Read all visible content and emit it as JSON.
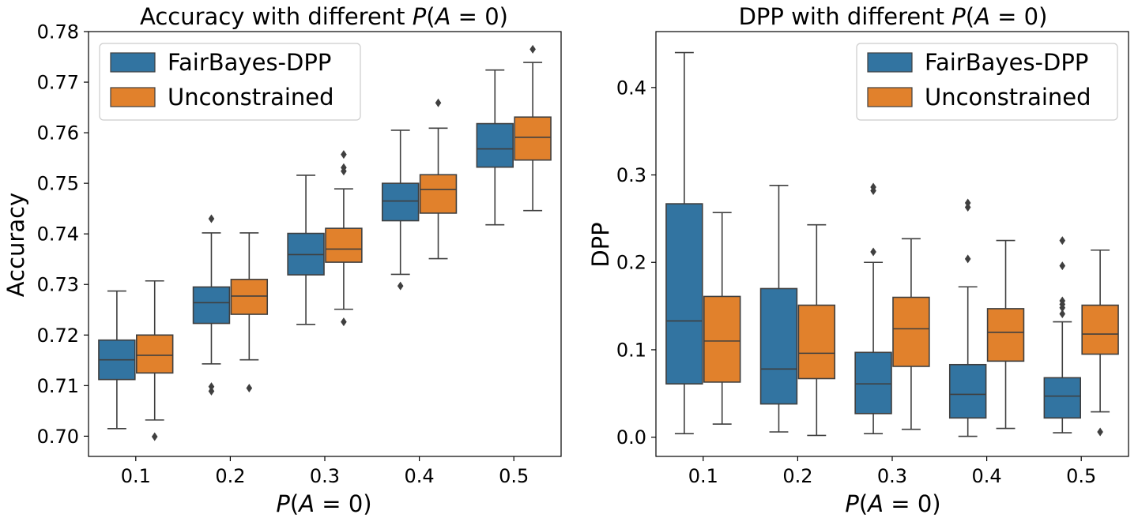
{
  "chart_data": [
    {
      "type": "box",
      "title_prefix": "Accuracy with different ",
      "xlabel": "P(A = 0)",
      "ylabel": "Accuracy",
      "categories": [
        "0.1",
        "0.2",
        "0.3",
        "0.4",
        "0.5"
      ],
      "ylim": [
        0.696,
        0.78
      ],
      "yticks": [
        "0.70",
        "0.71",
        "0.72",
        "0.73",
        "0.74",
        "0.75",
        "0.76",
        "0.77",
        "0.78"
      ],
      "legend_position": "top-left",
      "series": [
        {
          "name": "FairBayes-DPP",
          "color": "#3274a1",
          "boxes": [
            {
              "whislo": 0.7015,
              "q1": 0.7112,
              "med": 0.7151,
              "q3": 0.719,
              "whishi": 0.7287,
              "fliers": []
            },
            {
              "whislo": 0.7143,
              "q1": 0.7223,
              "med": 0.7264,
              "q3": 0.7295,
              "whishi": 0.7402,
              "fliers": [
                0.743,
                0.7098,
                0.7089
              ]
            },
            {
              "whislo": 0.7221,
              "q1": 0.7319,
              "med": 0.7359,
              "q3": 0.7401,
              "whishi": 0.7516,
              "fliers": []
            },
            {
              "whislo": 0.732,
              "q1": 0.7426,
              "med": 0.7465,
              "q3": 0.75,
              "whishi": 0.7605,
              "fliers": [
                0.7297
              ]
            },
            {
              "whislo": 0.7418,
              "q1": 0.7532,
              "med": 0.7568,
              "q3": 0.7618,
              "whishi": 0.7724,
              "fliers": []
            }
          ]
        },
        {
          "name": "Unconstrained",
          "color": "#e1812c",
          "boxes": [
            {
              "whislo": 0.7032,
              "q1": 0.7125,
              "med": 0.716,
              "q3": 0.72,
              "whishi": 0.7307,
              "fliers": [
                0.6999
              ]
            },
            {
              "whislo": 0.7151,
              "q1": 0.7241,
              "med": 0.7277,
              "q3": 0.731,
              "whishi": 0.7402,
              "fliers": [
                0.7095
              ]
            },
            {
              "whislo": 0.7251,
              "q1": 0.7344,
              "med": 0.737,
              "q3": 0.7411,
              "whishi": 0.7489,
              "fliers": [
                0.7557,
                0.7531,
                0.7524,
                0.7226
              ]
            },
            {
              "whislo": 0.7351,
              "q1": 0.7441,
              "med": 0.7488,
              "q3": 0.7517,
              "whishi": 0.7609,
              "fliers": [
                0.7659
              ]
            },
            {
              "whislo": 0.7446,
              "q1": 0.7546,
              "med": 0.7591,
              "q3": 0.7631,
              "whishi": 0.7739,
              "fliers": [
                0.7765
              ]
            }
          ]
        }
      ]
    },
    {
      "type": "box",
      "title_prefix": "DPP with different ",
      "xlabel": "P(A = 0)",
      "ylabel": "DPP",
      "categories": [
        "0.1",
        "0.2",
        "0.3",
        "0.4",
        "0.5"
      ],
      "ylim": [
        -0.022,
        0.464
      ],
      "yticks": [
        "0.0",
        "0.1",
        "0.2",
        "0.3",
        "0.4"
      ],
      "legend_position": "top-right",
      "series": [
        {
          "name": "FairBayes-DPP",
          "color": "#3274a1",
          "boxes": [
            {
              "whislo": 0.004,
              "q1": 0.061,
              "med": 0.133,
              "q3": 0.267,
              "whishi": 0.44,
              "fliers": []
            },
            {
              "whislo": 0.006,
              "q1": 0.038,
              "med": 0.078,
              "q3": 0.17,
              "whishi": 0.288,
              "fliers": []
            },
            {
              "whislo": 0.004,
              "q1": 0.027,
              "med": 0.061,
              "q3": 0.097,
              "whishi": 0.2,
              "fliers": [
                0.286,
                0.282,
                0.212
              ]
            },
            {
              "whislo": 0.001,
              "q1": 0.022,
              "med": 0.049,
              "q3": 0.083,
              "whishi": 0.172,
              "fliers": [
                0.268,
                0.263,
                0.204
              ]
            },
            {
              "whislo": 0.005,
              "q1": 0.022,
              "med": 0.047,
              "q3": 0.068,
              "whishi": 0.132,
              "fliers": [
                0.225,
                0.196,
                0.156,
                0.152,
                0.148,
                0.141
              ]
            }
          ]
        },
        {
          "name": "Unconstrained",
          "color": "#e1812c",
          "boxes": [
            {
              "whislo": 0.015,
              "q1": 0.063,
              "med": 0.11,
              "q3": 0.161,
              "whishi": 0.257,
              "fliers": []
            },
            {
              "whislo": 0.002,
              "q1": 0.067,
              "med": 0.096,
              "q3": 0.151,
              "whishi": 0.243,
              "fliers": []
            },
            {
              "whislo": 0.009,
              "q1": 0.081,
              "med": 0.124,
              "q3": 0.16,
              "whishi": 0.227,
              "fliers": []
            },
            {
              "whislo": 0.01,
              "q1": 0.087,
              "med": 0.12,
              "q3": 0.147,
              "whishi": 0.225,
              "fliers": []
            },
            {
              "whislo": 0.029,
              "q1": 0.095,
              "med": 0.118,
              "q3": 0.151,
              "whishi": 0.214,
              "fliers": [
                0.006
              ]
            }
          ]
        }
      ]
    }
  ]
}
